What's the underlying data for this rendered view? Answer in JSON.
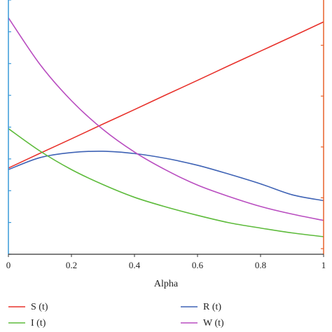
{
  "chart_data": {
    "type": "line",
    "title": "",
    "xlabel": "Alpha",
    "ylabel": "",
    "xlim": [
      0,
      1
    ],
    "ylim": [
      0,
      1
    ],
    "x_ticks": [
      0,
      0.2,
      0.4,
      0.6,
      0.8,
      1
    ],
    "x_tick_labels": [
      "0",
      "0.2",
      "0.4",
      "0.6",
      "0.8",
      "1"
    ],
    "grid": false,
    "legend_position": "bottom",
    "left_axis_color": "#3a9ad9",
    "right_axis_color": "#e8622c",
    "series": [
      {
        "name": "S (t)",
        "color": "#e8322c",
        "x": [
          0,
          0.1,
          0.2,
          0.3,
          0.4,
          0.5,
          0.6,
          0.7,
          0.8,
          0.9,
          1.0
        ],
        "y": [
          0.339,
          0.397,
          0.454,
          0.512,
          0.569,
          0.627,
          0.684,
          0.742,
          0.799,
          0.856,
          0.914
        ]
      },
      {
        "name": "R (t)",
        "color": "#3f63b5",
        "x": [
          0,
          0.1,
          0.2,
          0.3,
          0.4,
          0.5,
          0.6,
          0.7,
          0.8,
          0.9,
          1.0
        ],
        "y": [
          0.333,
          0.38,
          0.4,
          0.405,
          0.396,
          0.377,
          0.35,
          0.315,
          0.277,
          0.234,
          0.211
        ]
      },
      {
        "name": "I (t)",
        "color": "#5dbb3b",
        "x": [
          0,
          0.1,
          0.2,
          0.3,
          0.4,
          0.5,
          0.6,
          0.7,
          0.8,
          0.9,
          1.0
        ],
        "y": [
          0.494,
          0.406,
          0.333,
          0.274,
          0.224,
          0.186,
          0.153,
          0.124,
          0.103,
          0.084,
          0.069
        ]
      },
      {
        "name": "W (t)",
        "color": "#b94dc0",
        "x": [
          0,
          0.1,
          0.2,
          0.3,
          0.4,
          0.5,
          0.6,
          0.7,
          0.8,
          0.9,
          1.0
        ],
        "y": [
          0.93,
          0.747,
          0.604,
          0.491,
          0.402,
          0.331,
          0.272,
          0.227,
          0.188,
          0.158,
          0.133
        ]
      }
    ],
    "legend": [
      {
        "name": "S (t)",
        "color": "#e8322c"
      },
      {
        "name": "R (t)",
        "color": "#3f63b5"
      },
      {
        "name": "I (t)",
        "color": "#5dbb3b"
      },
      {
        "name": "W (t)",
        "color": "#b94dc0"
      }
    ]
  }
}
